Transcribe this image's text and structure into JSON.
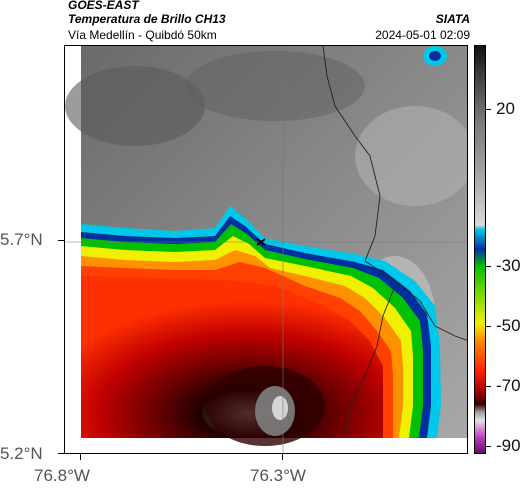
{
  "header": {
    "satellite": "GOES-EAST",
    "product": "Temperatura de Brillo CH13",
    "route": "Vía Medellín - Quibdó 50km",
    "agency": "SIATA",
    "timestamp": "2024-05-01 02:09"
  },
  "map": {
    "latitude_ticks": [
      "5.7°N",
      "5.2°N"
    ],
    "longitude_ticks": [
      "76.8°W",
      "76.3°W"
    ],
    "marker": "route-point"
  },
  "colorbar": {
    "ticks": [
      "20",
      "-30",
      "-50",
      "-70",
      "-90"
    ],
    "colors": {
      "warm_top": "#222222",
      "gray": "#9a9a9a",
      "cyan": "#00c8e8",
      "blue": "#0030a0",
      "green": "#00c000",
      "yellow": "#f0f000",
      "orange": "#ff6000",
      "red": "#d00000",
      "darkred": "#500000",
      "magenta": "#c040c0"
    }
  }
}
